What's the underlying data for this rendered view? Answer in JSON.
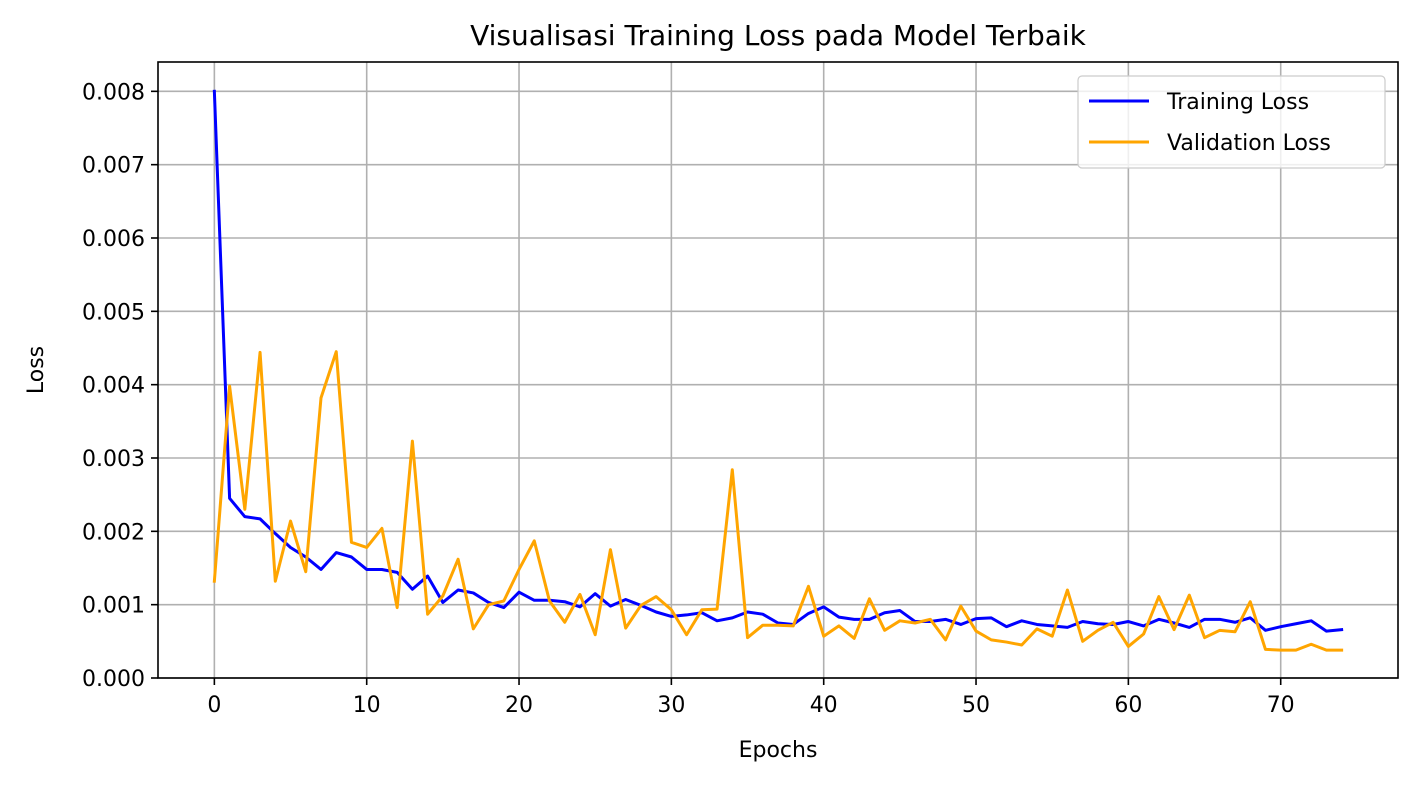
{
  "chart_data": {
    "type": "line",
    "title": "Visualisasi Training Loss pada Model Terbaik",
    "xlabel": "Epochs",
    "ylabel": "Loss",
    "xlim": [
      -3.7,
      77.7
    ],
    "ylim": [
      0,
      0.0084
    ],
    "xticks": [
      0,
      10,
      20,
      30,
      40,
      50,
      60,
      70
    ],
    "xtick_labels": [
      "0",
      "10",
      "20",
      "30",
      "40",
      "50",
      "60",
      "70"
    ],
    "yticks": [
      0,
      0.001,
      0.002,
      0.003,
      0.004,
      0.005,
      0.006,
      0.007,
      0.008
    ],
    "ytick_labels": [
      "0.000",
      "0.001",
      "0.002",
      "0.003",
      "0.004",
      "0.005",
      "0.006",
      "0.007",
      "0.008"
    ],
    "grid": true,
    "legend_position": "top-right",
    "series": [
      {
        "name": "Training Loss",
        "color": "#0000ff",
        "values": [
          0.008,
          0.00245,
          0.0022,
          0.00217,
          0.00197,
          0.00178,
          0.00165,
          0.00148,
          0.00171,
          0.00165,
          0.00148,
          0.00148,
          0.00144,
          0.00121,
          0.00139,
          0.00103,
          0.0012,
          0.00116,
          0.00103,
          0.00096,
          0.00117,
          0.00106,
          0.00106,
          0.00104,
          0.00097,
          0.00115,
          0.00098,
          0.00107,
          0.00099,
          0.0009,
          0.00084,
          0.00086,
          0.00089,
          0.00078,
          0.00082,
          0.0009,
          0.00087,
          0.00075,
          0.00073,
          0.00088,
          0.00097,
          0.00083,
          0.0008,
          0.0008,
          0.00089,
          0.00092,
          0.00077,
          0.00077,
          0.0008,
          0.00073,
          0.00081,
          0.00082,
          0.0007,
          0.00078,
          0.00073,
          0.00071,
          0.00069,
          0.00077,
          0.00074,
          0.00073,
          0.00077,
          0.00071,
          0.0008,
          0.00075,
          0.00069,
          0.0008,
          0.0008,
          0.00076,
          0.00082,
          0.00065,
          0.0007,
          0.00074,
          0.00078,
          0.00064,
          0.00066
        ]
      },
      {
        "name": "Validation Loss",
        "color": "#ffa500",
        "values": [
          0.00132,
          0.00398,
          0.0023,
          0.00444,
          0.00132,
          0.00214,
          0.00145,
          0.00382,
          0.00445,
          0.00185,
          0.00178,
          0.00204,
          0.00096,
          0.00323,
          0.00087,
          0.00112,
          0.00162,
          0.00067,
          0.001,
          0.00105,
          0.00148,
          0.00187,
          0.00105,
          0.00076,
          0.00114,
          0.00059,
          0.00175,
          0.00068,
          0.00099,
          0.00111,
          0.00093,
          0.00059,
          0.00093,
          0.00094,
          0.00284,
          0.00055,
          0.00072,
          0.00072,
          0.00071,
          0.00125,
          0.00057,
          0.00071,
          0.00054,
          0.00108,
          0.00065,
          0.00078,
          0.00075,
          0.0008,
          0.00052,
          0.00098,
          0.00064,
          0.00052,
          0.00049,
          0.00045,
          0.00067,
          0.00057,
          0.0012,
          0.0005,
          0.00065,
          0.00076,
          0.00043,
          0.0006,
          0.00111,
          0.00066,
          0.00113,
          0.00055,
          0.00065,
          0.00063,
          0.00104,
          0.00039,
          0.00038,
          0.00038,
          0.00046,
          0.00038,
          0.00038
        ]
      }
    ]
  }
}
